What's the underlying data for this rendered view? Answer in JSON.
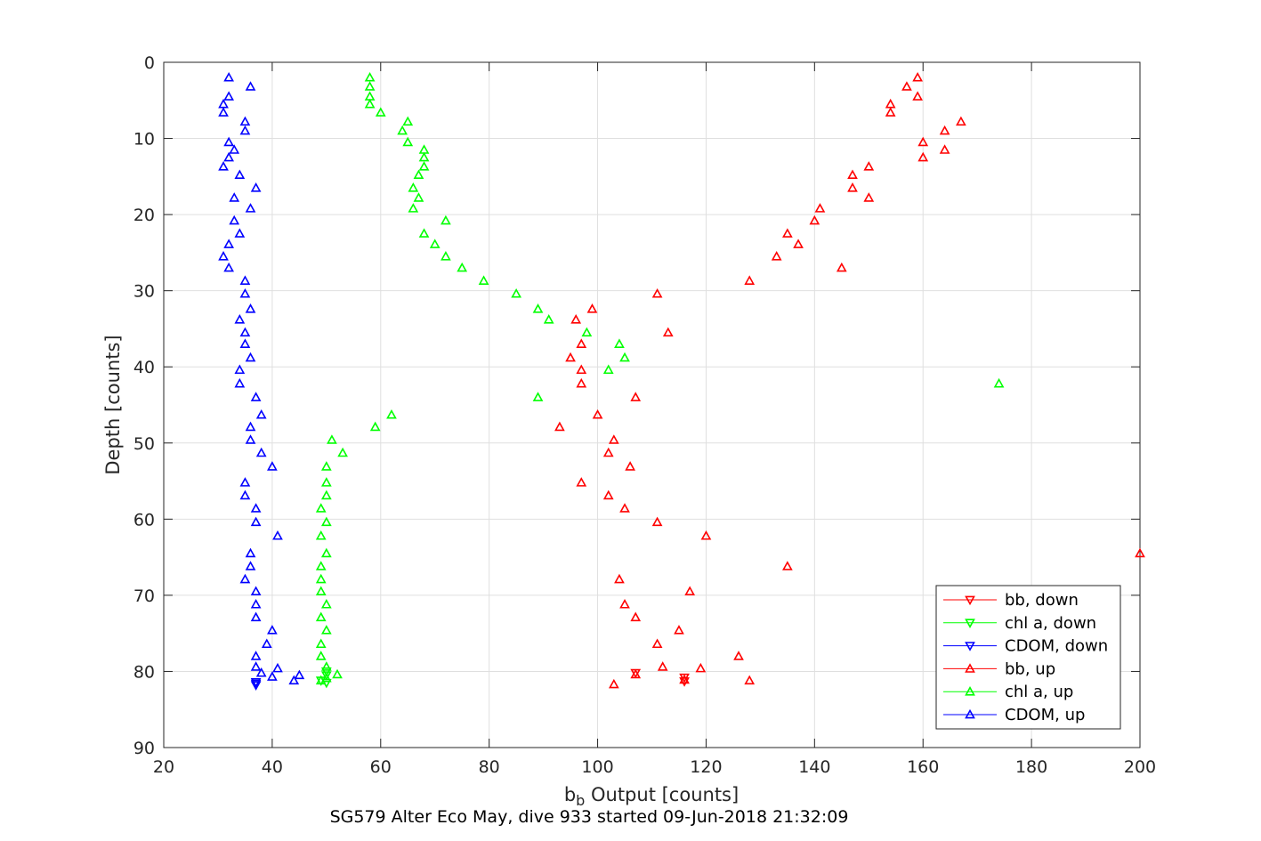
{
  "chart_data": {
    "type": "scatter",
    "title": "SG579 Alter Eco May, dive 933 started 09-Jun-2018 21:32:09",
    "xlabel_main": "b",
    "xlabel_sub": "b",
    "xlabel_rest": " Output [counts]",
    "ylabel": "Depth [counts]",
    "xlim": [
      20,
      200
    ],
    "ylim": [
      0,
      90
    ],
    "y_reversed": true,
    "grid": true,
    "legend_position": "bottom-right",
    "x_ticks": [
      "20",
      "40",
      "60",
      "80",
      "100",
      "120",
      "140",
      "160",
      "180",
      "200"
    ],
    "y_ticks": [
      "0",
      "10",
      "20",
      "30",
      "40",
      "50",
      "60",
      "70",
      "80",
      "90"
    ],
    "colors": {
      "bb": "#ff0000",
      "chl": "#00ff00",
      "cdom": "#0000ff"
    },
    "series": [
      {
        "name": "bb, down",
        "color": "#ff0000",
        "marker": "triangle-down",
        "points": [
          [
            107,
            80.2
          ],
          [
            116,
            80.8
          ],
          [
            116,
            81.3
          ]
        ]
      },
      {
        "name": "chl a, down",
        "color": "#00ff00",
        "marker": "triangle-down",
        "points": [
          [
            50,
            80.0
          ],
          [
            50,
            80.5
          ],
          [
            49,
            81.2
          ],
          [
            50,
            81.5
          ]
        ]
      },
      {
        "name": "CDOM, down",
        "color": "#0000ff",
        "marker": "triangle-down",
        "points": [
          [
            37,
            81.4
          ],
          [
            37,
            81.8
          ],
          [
            37,
            81.6
          ]
        ]
      },
      {
        "name": "bb, up",
        "color": "#ff0000",
        "marker": "triangle-up",
        "points": [
          [
            159,
            2.0
          ],
          [
            157,
            3.2
          ],
          [
            159,
            4.5
          ],
          [
            154,
            5.5
          ],
          [
            154,
            6.6
          ],
          [
            167,
            7.8
          ],
          [
            164,
            9.0
          ],
          [
            160,
            10.5
          ],
          [
            164,
            11.5
          ],
          [
            160,
            12.5
          ],
          [
            150,
            13.7
          ],
          [
            147,
            14.8
          ],
          [
            147,
            16.5
          ],
          [
            150,
            17.8
          ],
          [
            141,
            19.2
          ],
          [
            140,
            20.8
          ],
          [
            135,
            22.5
          ],
          [
            137,
            23.9
          ],
          [
            133,
            25.5
          ],
          [
            145,
            27.0
          ],
          [
            128,
            28.7
          ],
          [
            111,
            30.4
          ],
          [
            99,
            32.4
          ],
          [
            96,
            33.8
          ],
          [
            113,
            35.5
          ],
          [
            97,
            37.0
          ],
          [
            95,
            38.8
          ],
          [
            97,
            40.4
          ],
          [
            97,
            42.2
          ],
          [
            107,
            44.0
          ],
          [
            100,
            46.3
          ],
          [
            93,
            47.9
          ],
          [
            103,
            49.6
          ],
          [
            102,
            51.3
          ],
          [
            106,
            53.1
          ],
          [
            97,
            55.2
          ],
          [
            102,
            56.9
          ],
          [
            105,
            58.6
          ],
          [
            111,
            60.4
          ],
          [
            120,
            62.2
          ],
          [
            200,
            64.5
          ],
          [
            135,
            66.2
          ],
          [
            104,
            67.9
          ],
          [
            117,
            69.5
          ],
          [
            105,
            71.2
          ],
          [
            107,
            72.9
          ],
          [
            115,
            74.6
          ],
          [
            111,
            76.4
          ],
          [
            126,
            78.0
          ],
          [
            112,
            79.4
          ],
          [
            119,
            79.6
          ],
          [
            107,
            80.4
          ],
          [
            116,
            81.1
          ],
          [
            128,
            81.2
          ],
          [
            103,
            81.7
          ]
        ]
      },
      {
        "name": "chl a, up",
        "color": "#00ff00",
        "marker": "triangle-up",
        "points": [
          [
            58,
            2.0
          ],
          [
            58,
            3.2
          ],
          [
            58,
            4.5
          ],
          [
            58,
            5.5
          ],
          [
            60,
            6.6
          ],
          [
            65,
            7.8
          ],
          [
            64,
            9.0
          ],
          [
            65,
            10.5
          ],
          [
            68,
            11.5
          ],
          [
            68,
            12.5
          ],
          [
            68,
            13.7
          ],
          [
            67,
            14.8
          ],
          [
            66,
            16.5
          ],
          [
            67,
            17.8
          ],
          [
            66,
            19.2
          ],
          [
            72,
            20.8
          ],
          [
            68,
            22.5
          ],
          [
            70,
            23.9
          ],
          [
            72,
            25.5
          ],
          [
            75,
            27.0
          ],
          [
            79,
            28.7
          ],
          [
            85,
            30.4
          ],
          [
            89,
            32.4
          ],
          [
            91,
            33.8
          ],
          [
            98,
            35.5
          ],
          [
            104,
            37.0
          ],
          [
            105,
            38.8
          ],
          [
            102,
            40.4
          ],
          [
            174,
            42.2
          ],
          [
            89,
            44.0
          ],
          [
            62,
            46.3
          ],
          [
            59,
            47.9
          ],
          [
            51,
            49.6
          ],
          [
            53,
            51.3
          ],
          [
            50,
            53.1
          ],
          [
            50,
            55.2
          ],
          [
            50,
            56.9
          ],
          [
            49,
            58.6
          ],
          [
            50,
            60.4
          ],
          [
            49,
            62.2
          ],
          [
            50,
            64.5
          ],
          [
            49,
            66.2
          ],
          [
            49,
            67.9
          ],
          [
            49,
            69.5
          ],
          [
            50,
            71.2
          ],
          [
            49,
            72.9
          ],
          [
            50,
            74.6
          ],
          [
            49,
            76.4
          ],
          [
            49,
            78.0
          ],
          [
            50,
            79.4
          ],
          [
            52,
            80.4
          ],
          [
            50,
            80.9
          ],
          [
            49,
            81.2
          ]
        ]
      },
      {
        "name": "CDOM, up",
        "color": "#0000ff",
        "marker": "triangle-up",
        "points": [
          [
            32,
            2.0
          ],
          [
            36,
            3.2
          ],
          [
            32,
            4.5
          ],
          [
            31,
            5.5
          ],
          [
            31,
            6.6
          ],
          [
            35,
            7.8
          ],
          [
            35,
            9.0
          ],
          [
            32,
            10.5
          ],
          [
            33,
            11.5
          ],
          [
            32,
            12.5
          ],
          [
            31,
            13.7
          ],
          [
            34,
            14.8
          ],
          [
            37,
            16.5
          ],
          [
            33,
            17.8
          ],
          [
            36,
            19.2
          ],
          [
            33,
            20.8
          ],
          [
            34,
            22.5
          ],
          [
            32,
            23.9
          ],
          [
            31,
            25.5
          ],
          [
            32,
            27.0
          ],
          [
            35,
            28.7
          ],
          [
            35,
            30.4
          ],
          [
            36,
            32.4
          ],
          [
            34,
            33.8
          ],
          [
            35,
            35.5
          ],
          [
            35,
            37.0
          ],
          [
            36,
            38.8
          ],
          [
            34,
            40.4
          ],
          [
            34,
            42.2
          ],
          [
            37,
            44.0
          ],
          [
            38,
            46.3
          ],
          [
            36,
            47.9
          ],
          [
            36,
            49.6
          ],
          [
            38,
            51.3
          ],
          [
            40,
            53.1
          ],
          [
            35,
            55.2
          ],
          [
            35,
            56.9
          ],
          [
            37,
            58.6
          ],
          [
            37,
            60.4
          ],
          [
            41,
            62.2
          ],
          [
            36,
            64.5
          ],
          [
            36,
            66.2
          ],
          [
            35,
            67.9
          ],
          [
            37,
            69.5
          ],
          [
            37,
            71.2
          ],
          [
            37,
            72.9
          ],
          [
            40,
            74.6
          ],
          [
            39,
            76.4
          ],
          [
            37,
            78.0
          ],
          [
            41,
            79.6
          ],
          [
            38,
            80.2
          ],
          [
            45,
            80.5
          ],
          [
            40,
            80.7
          ],
          [
            44,
            81.2
          ],
          [
            37,
            79.4
          ]
        ]
      }
    ]
  }
}
